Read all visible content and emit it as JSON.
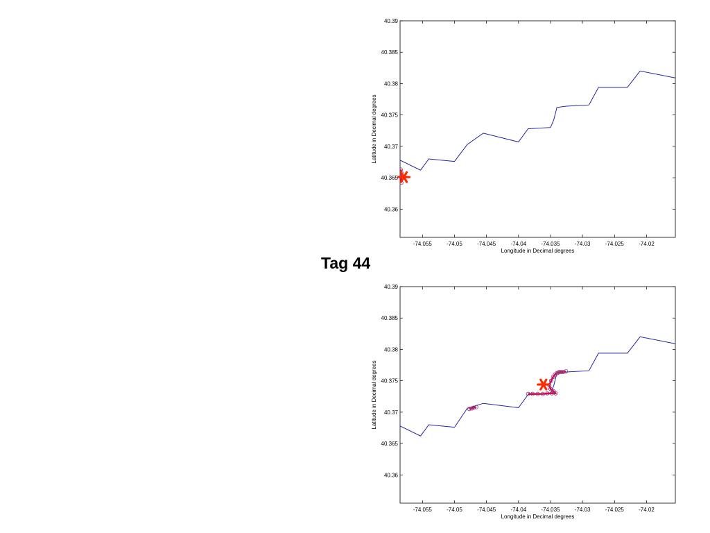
{
  "label": "Tag 44",
  "colors": {
    "coastline": "#2020a0",
    "star": "#ff2a00",
    "track": "#e0004a",
    "track_marker": "#8a3a7a"
  },
  "chart_data": [
    {
      "type": "line",
      "xlabel": "Longitude in Decimal degrees",
      "ylabel": "Latitude in Decimal degrees",
      "xlim": [
        -74.0585,
        -74.0155
      ],
      "ylim": [
        40.3555,
        40.39
      ],
      "xticks": [
        -74.055,
        -74.05,
        -74.045,
        -74.04,
        -74.035,
        -74.03,
        -74.025,
        -74.02
      ],
      "xtick_labels": [
        "-74.055",
        "-74.05",
        "-74.045",
        "-74.04",
        "-74.035",
        "-74.03",
        "-74.025",
        "-74.02"
      ],
      "yticks": [
        40.36,
        40.365,
        40.37,
        40.375,
        40.38,
        40.385,
        40.39
      ],
      "ytick_labels": [
        "40.36",
        "40.365",
        "40.37",
        "40.375",
        "40.38",
        "40.385",
        "40.39"
      ],
      "grid": false,
      "series": [
        {
          "role": "coastline",
          "x": [
            -74.0585,
            -74.0553,
            -74.054,
            -74.05,
            -74.048,
            -74.0455,
            -74.04,
            -74.0385,
            -74.035,
            -74.0345,
            -74.034,
            -74.0325,
            -74.029,
            -74.0275,
            -74.023,
            -74.021,
            -74.0155
          ],
          "y": [
            40.3678,
            40.3662,
            40.368,
            40.3676,
            40.3703,
            40.3721,
            40.3707,
            40.3728,
            40.373,
            40.3742,
            40.3762,
            40.3764,
            40.3766,
            40.3794,
            40.3794,
            40.382,
            40.3809
          ]
        },
        {
          "role": "track",
          "x": [
            -74.0584,
            -74.0583,
            -74.0582,
            -74.0584,
            -74.0583
          ],
          "y": [
            40.3663,
            40.3658,
            40.3652,
            40.3646,
            40.3642
          ]
        }
      ],
      "marker": {
        "x": -74.0579,
        "y": 40.3651
      }
    },
    {
      "type": "line",
      "xlabel": "Longitude in Decimal degrees",
      "ylabel": "Latitude in Decimal degrees",
      "xlim": [
        -74.0585,
        -74.0155
      ],
      "ylim": [
        40.3555,
        40.39
      ],
      "xticks": [
        -74.055,
        -74.05,
        -74.045,
        -74.04,
        -74.035,
        -74.03,
        -74.025,
        -74.02
      ],
      "xtick_labels": [
        "-74.055",
        "-74.05",
        "-74.045",
        "-74.04",
        "-74.035",
        "-74.03",
        "-74.025",
        "-74.02"
      ],
      "yticks": [
        40.36,
        40.365,
        40.37,
        40.375,
        40.38,
        40.385,
        40.39
      ],
      "ytick_labels": [
        "40.36",
        "40.365",
        "40.37",
        "40.375",
        "40.38",
        "40.385",
        "40.39"
      ],
      "grid": false,
      "series": [
        {
          "role": "coastline",
          "x": [
            -74.0585,
            -74.0553,
            -74.054,
            -74.05,
            -74.048,
            -74.0455,
            -74.04,
            -74.0385,
            -74.035,
            -74.0345,
            -74.034,
            -74.0325,
            -74.029,
            -74.0275,
            -74.023,
            -74.021,
            -74.0155
          ],
          "y": [
            40.3678,
            40.3662,
            40.368,
            40.3676,
            40.3706,
            40.3714,
            40.3707,
            40.3728,
            40.3729,
            40.3742,
            40.3762,
            40.3764,
            40.3766,
            40.3794,
            40.3794,
            40.382,
            40.3809
          ]
        },
        {
          "role": "track",
          "x": [
            -74.0385,
            -74.0378,
            -74.037,
            -74.0362,
            -74.0355,
            -74.0348,
            -74.0342,
            -74.0345,
            -74.035,
            -74.0352,
            -74.0349,
            -74.0346,
            -74.0343,
            -74.034,
            -74.0338,
            -74.0336,
            -74.0333,
            -74.033,
            -74.0326
          ],
          "y": [
            40.3729,
            40.3729,
            40.3729,
            40.3729,
            40.373,
            40.373,
            40.373,
            40.3733,
            40.3737,
            40.3743,
            40.375,
            40.3756,
            40.376,
            40.3762,
            40.3763,
            40.3764,
            40.3764,
            40.3764,
            40.3765
          ]
        },
        {
          "role": "track",
          "x": [
            -74.0477,
            -74.0473,
            -74.047,
            -74.0466
          ],
          "y": [
            40.3705,
            40.3706,
            40.3707,
            40.3708
          ]
        }
      ],
      "marker": {
        "x": -74.0361,
        "y": 40.3744
      }
    }
  ]
}
